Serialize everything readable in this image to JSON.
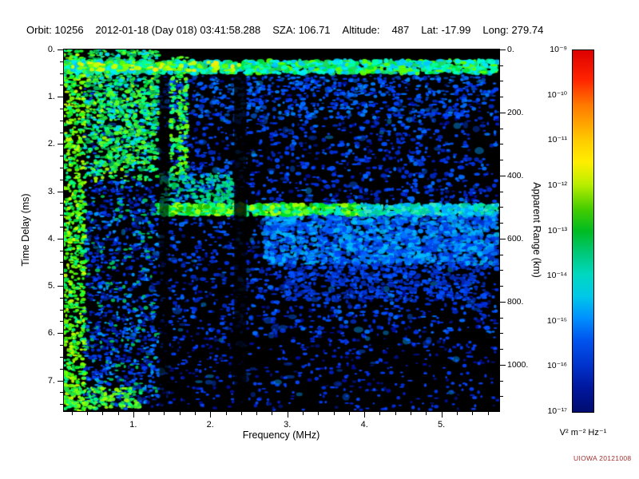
{
  "header": {
    "parts": [
      "Orbit: 10256",
      "2012-01-18 (Day 018) 03:41:58.288",
      "SZA: 106.71",
      "Altitude:",
      "487",
      "Lat: -17.99",
      "Long: 279.74"
    ]
  },
  "chart_data": {
    "type": "heatmap",
    "title": "",
    "xlabel": "Frequency (MHz)",
    "ylabel_left": "Time Delay (ms)",
    "ylabel_right": "Apparent Range (km)",
    "x_range": [
      0.1,
      5.75
    ],
    "y_range": [
      0,
      7.65
    ],
    "bg": "#000000",
    "x_ticks": [
      {
        "v": 1,
        "label": "1."
      },
      {
        "v": 2,
        "label": "2."
      },
      {
        "v": 3,
        "label": "3."
      },
      {
        "v": 4,
        "label": "4."
      },
      {
        "v": 5,
        "label": "5."
      }
    ],
    "x_minor_step": 0.2,
    "y_ticks_left": [
      {
        "v": 0,
        "label": "0."
      },
      {
        "v": 1,
        "label": "1."
      },
      {
        "v": 2,
        "label": "2."
      },
      {
        "v": 3,
        "label": "3."
      },
      {
        "v": 4,
        "label": "4."
      },
      {
        "v": 5,
        "label": "5."
      },
      {
        "v": 6,
        "label": "6."
      },
      {
        "v": 7,
        "label": "7."
      }
    ],
    "y_minor_step": 0.25,
    "y_ticks_right": [
      {
        "t": 0,
        "label": "0."
      },
      {
        "t": 1.3333,
        "label": "200."
      },
      {
        "t": 2.6667,
        "label": "400."
      },
      {
        "t": 4.0,
        "label": "600."
      },
      {
        "t": 5.3333,
        "label": "800."
      },
      {
        "t": 6.6667,
        "label": "1000."
      }
    ],
    "right_minor_step_t": 0.33333,
    "colorbar": {
      "unit": "V² m⁻² Hz⁻¹",
      "tick_labels": [
        "10⁻⁹",
        "10⁻¹⁰",
        "10⁻¹¹",
        "10⁻¹²",
        "10⁻¹³",
        "10⁻¹⁴",
        "10⁻¹⁵",
        "10⁻¹⁶",
        "10⁻¹⁷"
      ],
      "gradient": [
        {
          "p": 0,
          "c": "#dd0000"
        },
        {
          "p": 8,
          "c": "#ff2200"
        },
        {
          "p": 15,
          "c": "#ff7700"
        },
        {
          "p": 25,
          "c": "#ffcc00"
        },
        {
          "p": 31,
          "c": "#ffee00"
        },
        {
          "p": 37,
          "c": "#bbee00"
        },
        {
          "p": 44,
          "c": "#44cc00"
        },
        {
          "p": 50,
          "c": "#00bb22"
        },
        {
          "p": 56,
          "c": "#00c878"
        },
        {
          "p": 62,
          "c": "#00d8c0"
        },
        {
          "p": 68,
          "c": "#00c8e8"
        },
        {
          "p": 74,
          "c": "#0090ff"
        },
        {
          "p": 80,
          "c": "#0055ee"
        },
        {
          "p": 87,
          "c": "#0033cc"
        },
        {
          "p": 93,
          "c": "#0018a0"
        },
        {
          "p": 100,
          "c": "#000c70"
        }
      ]
    },
    "features": [
      {
        "type": "cloud",
        "f0": 0.35,
        "f1": 5.73,
        "t0": 0.55,
        "t1": 7.62,
        "count": 2400,
        "size": 2.2,
        "palette": [
          "#000d99",
          "#001ec4",
          "#0033e6",
          "#0a46ff",
          "#001070",
          "#0040ff"
        ]
      },
      {
        "type": "cloud",
        "f0": 1.5,
        "f1": 5.73,
        "t0": 0.6,
        "t1": 6.0,
        "count": 1100,
        "size": 2.7,
        "palette": [
          "#0030dd",
          "#0050ff",
          "#0070ff",
          "#0028bb"
        ]
      },
      {
        "type": "cloud",
        "f0": 1.4,
        "f1": 5.73,
        "t0": 0.55,
        "t1": 1.45,
        "count": 450,
        "size": 2.4,
        "palette": [
          "#0040ff",
          "#0060ff",
          "#00419e",
          "#0080ff"
        ]
      },
      {
        "type": "cloud",
        "f0": 0.35,
        "f1": 5.73,
        "t0": 0.6,
        "t1": 7.5,
        "count": 170,
        "size": 4.2,
        "alpha": 0.45,
        "palette": [
          "#0060ff",
          "#00a0ff",
          "#0040dd"
        ]
      },
      {
        "type": "vstripes",
        "f0": 0.38,
        "f1": 1.33,
        "n": 26,
        "count_per": 55,
        "t0": 0.05,
        "t1": 7.6,
        "size": 2.3,
        "bright_below_t": 2.8,
        "palette_bright": [
          "#00e830",
          "#40ff40",
          "#00ff98",
          "#00d8ff",
          "#a8ff00",
          "#00c060"
        ],
        "palette_dim": [
          "#0040ff",
          "#0028cc",
          "#00a0ff",
          "#0060ff",
          "#001899",
          "#00c060"
        ]
      },
      {
        "type": "cloud",
        "f0": 0.4,
        "f1": 1.33,
        "t0": 0.0,
        "t1": 2.6,
        "count": 600,
        "size": 2.5,
        "palette": [
          "#20e040",
          "#00ff80",
          "#60ff20",
          "#00d8ff",
          "#00b050"
        ]
      },
      {
        "type": "vstripes",
        "f0": 1.5,
        "f1": 1.72,
        "n": 4,
        "count_per": 50,
        "t0": 0.15,
        "t1": 2.7,
        "size": 2.4,
        "bright_below_t": 2.7,
        "palette_bright": [
          "#00e830",
          "#50ff30",
          "#00ffa0",
          "#80ff00"
        ],
        "palette_dim": [
          "#0040ff"
        ]
      },
      {
        "type": "cloud",
        "f0": 0.1,
        "f1": 0.38,
        "t0": 0,
        "t1": 7.65,
        "count": 900,
        "size": 2.3,
        "palette": [
          "#20ff20",
          "#80ff00",
          "#c8ff00",
          "#00ff90",
          "#00e040",
          "#60ff00"
        ]
      },
      {
        "type": "cloud",
        "f0": 0.12,
        "f1": 1.1,
        "t0": 7.15,
        "t1": 7.6,
        "count": 150,
        "size": 2.4,
        "palette": [
          "#20e040",
          "#60ff20",
          "#00ff80",
          "#a0ff00"
        ]
      },
      {
        "type": "cloud",
        "f0": 2.7,
        "f1": 5.73,
        "t0": 3.45,
        "t1": 4.55,
        "count": 1500,
        "size": 3.0,
        "alpha": 0.8,
        "palette": [
          "#0050ff",
          "#0078ff",
          "#00a0ff",
          "#00c0ff",
          "#0038dd"
        ]
      },
      {
        "type": "cloud",
        "f0": 3.0,
        "f1": 5.6,
        "t0": 4.55,
        "t1": 5.3,
        "count": 420,
        "size": 2.6,
        "palette": [
          "#0038dd",
          "#0050ff",
          "#0028aa"
        ]
      },
      {
        "type": "cloud",
        "f0": 1.35,
        "f1": 2.3,
        "t0": 2.6,
        "t1": 3.25,
        "count": 220,
        "size": 2.5,
        "palette": [
          "#00c050",
          "#00e080",
          "#0090ff",
          "#00d8b0"
        ]
      },
      {
        "type": "cloud",
        "f0": 1.32,
        "f1": 3.95,
        "t0": 3.27,
        "t1": 3.5,
        "count": 520,
        "size": 3.2,
        "palette": [
          "#00e020",
          "#60ff20",
          "#00ff80",
          "#b0ff00",
          "#00e8d0",
          "#20c000"
        ]
      },
      {
        "type": "cloud",
        "f0": 3.95,
        "f1": 5.73,
        "t0": 3.28,
        "t1": 3.5,
        "count": 330,
        "size": 3.0,
        "palette": [
          "#00c8a0",
          "#00d8ff",
          "#00e890",
          "#00a8ff",
          "#40e8c0"
        ]
      },
      {
        "type": "rect",
        "f0": 2.31,
        "f1": 2.47,
        "t0": 0.55,
        "t1": 7.65,
        "color": "#000000",
        "alpha": 0.82
      },
      {
        "type": "rect",
        "f0": 1.34,
        "f1": 1.46,
        "t0": 0.6,
        "t1": 7.65,
        "color": "#000000",
        "alpha": 0.6
      },
      {
        "type": "cloud",
        "f0": 0.1,
        "f1": 5.73,
        "t0": 0.24,
        "t1": 0.5,
        "count": 1000,
        "size": 3.3,
        "palette": [
          "#00e840",
          "#00ffa0",
          "#00e8ff",
          "#60ff00",
          "#00c8ff",
          "#20d860",
          "#00ffd0"
        ]
      },
      {
        "type": "cloud",
        "f0": 0.15,
        "f1": 2.4,
        "t0": 0.27,
        "t1": 0.45,
        "count": 70,
        "size": 3.0,
        "palette": [
          "#ffee00",
          "#ccff00",
          "#88ff00"
        ]
      }
    ]
  },
  "footer": {
    "credit": "UIOWA 20121008"
  }
}
